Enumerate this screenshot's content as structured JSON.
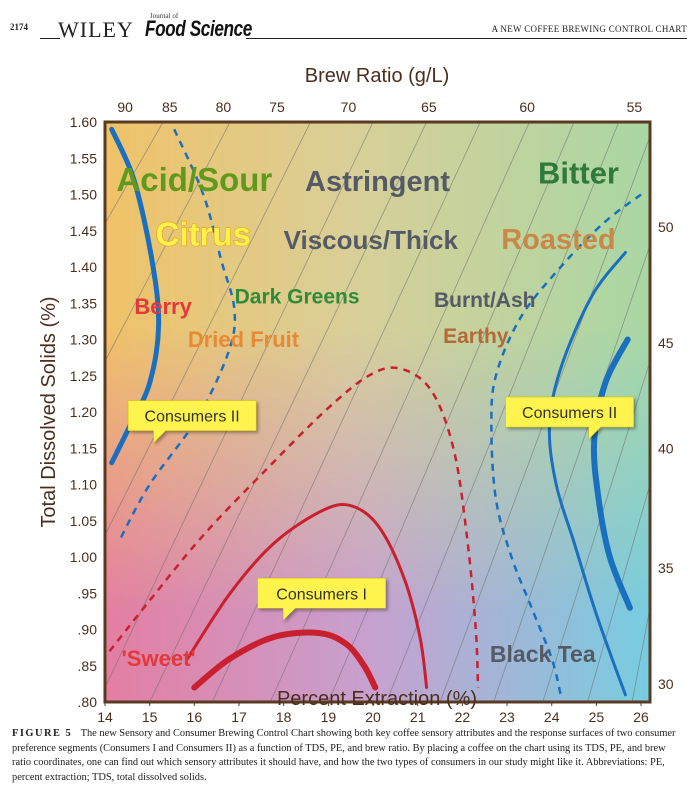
{
  "header": {
    "page_number": "2174",
    "publisher": "WILEY",
    "journal_small": "Journal of",
    "journal": "Food Science",
    "running_title": "A NEW COFFEE BREWING CONTROL CHART"
  },
  "chart_data": {
    "type": "line",
    "xlabel": "Percent Extraction (%)",
    "ylabel": "Total Dissolved Solids (%)",
    "top_axis_label": "Brew Ratio (g/L)",
    "xlim": [
      14,
      26.2
    ],
    "ylim": [
      0.8,
      1.6
    ],
    "x_ticks": [
      "14",
      "15",
      "16",
      "17",
      "18",
      "19",
      "20",
      "21",
      "22",
      "23",
      "24",
      "25",
      "26"
    ],
    "y_ticks": [
      {
        "v": 1.6,
        "t": "1.60"
      },
      {
        "v": 1.55,
        "t": "1.55"
      },
      {
        "v": 1.5,
        "t": "1.50"
      },
      {
        "v": 1.45,
        "t": "1.45"
      },
      {
        "v": 1.4,
        "t": "1.40"
      },
      {
        "v": 1.35,
        "t": "1.35"
      },
      {
        "v": 1.3,
        "t": "1.30"
      },
      {
        "v": 1.25,
        "t": "1.25"
      },
      {
        "v": 1.2,
        "t": "1.20"
      },
      {
        "v": 1.15,
        "t": "1.15"
      },
      {
        "v": 1.1,
        "t": "1.10"
      },
      {
        "v": 1.05,
        "t": "1.05"
      },
      {
        "v": 1.0,
        "t": "1.00"
      },
      {
        "v": 0.95,
        "t": ".95"
      },
      {
        "v": 0.9,
        "t": ".90"
      },
      {
        "v": 0.85,
        "t": ".85"
      },
      {
        "v": 0.8,
        "t": ".80"
      }
    ],
    "brew_ratio_top_ticks": [
      {
        "x": 14.45,
        "t": "90"
      },
      {
        "x": 15.45,
        "t": "85"
      },
      {
        "x": 16.65,
        "t": "80"
      },
      {
        "x": 17.85,
        "t": "75"
      },
      {
        "x": 19.45,
        "t": "70"
      },
      {
        "x": 21.25,
        "t": "65"
      },
      {
        "x": 23.45,
        "t": "60"
      },
      {
        "x": 25.85,
        "t": "55"
      }
    ],
    "brew_ratio_right_ticks": [
      {
        "y": 0.825,
        "t": "30"
      },
      {
        "y": 0.985,
        "t": "35"
      },
      {
        "y": 1.15,
        "t": "40"
      },
      {
        "y": 1.295,
        "t": "45"
      },
      {
        "y": 1.455,
        "t": "50"
      }
    ],
    "brew_ratio_lines": [
      [
        [
          14.0,
          1.03
        ],
        [
          18.6,
          1.6
        ]
      ],
      [
        [
          14.0,
          0.82
        ],
        [
          20.0,
          1.6
        ]
      ],
      [
        [
          15.0,
          0.8
        ],
        [
          21.2,
          1.6
        ]
      ],
      [
        [
          16.4,
          0.8
        ],
        [
          22.4,
          1.6
        ]
      ],
      [
        [
          17.7,
          0.8
        ],
        [
          23.5,
          1.6
        ]
      ],
      [
        [
          19.0,
          0.8
        ],
        [
          24.5,
          1.6
        ]
      ],
      [
        [
          20.3,
          0.8
        ],
        [
          25.5,
          1.6
        ]
      ],
      [
        [
          21.5,
          0.8
        ],
        [
          26.2,
          1.58
        ]
      ],
      [
        [
          22.7,
          0.8
        ],
        [
          26.2,
          1.43
        ]
      ],
      [
        [
          23.8,
          0.8
        ],
        [
          26.2,
          1.27
        ]
      ],
      [
        [
          24.8,
          0.8
        ],
        [
          26.2,
          1.1
        ]
      ],
      [
        [
          25.8,
          0.8
        ],
        [
          26.2,
          0.93
        ]
      ],
      [
        [
          14.0,
          1.27
        ],
        [
          16.8,
          1.6
        ]
      ],
      [
        [
          14.0,
          1.46
        ],
        [
          15.3,
          1.6
        ]
      ]
    ],
    "curves": [
      {
        "color": "#1a6fbf",
        "width": 5,
        "dash": "",
        "points": [
          [
            14.15,
            1.59
          ],
          [
            14.65,
            1.52
          ],
          [
            15.05,
            1.41
          ],
          [
            15.2,
            1.32
          ],
          [
            15.0,
            1.24
          ],
          [
            14.55,
            1.18
          ],
          [
            14.15,
            1.13
          ]
        ]
      },
      {
        "color": "#1a6fbf",
        "width": 2.5,
        "dash": "7 6",
        "points": [
          [
            15.55,
            1.59
          ],
          [
            16.2,
            1.5
          ],
          [
            16.6,
            1.41
          ],
          [
            16.9,
            1.34
          ],
          [
            16.75,
            1.28
          ],
          [
            16.05,
            1.19
          ],
          [
            15.0,
            1.1
          ],
          [
            14.3,
            1.02
          ]
        ]
      },
      {
        "color": "#1a6fbf",
        "width": 3,
        "dash": "",
        "points": [
          [
            25.65,
            1.42
          ],
          [
            24.9,
            1.36
          ],
          [
            24.2,
            1.26
          ],
          [
            23.95,
            1.18
          ],
          [
            24.1,
            1.1
          ],
          [
            24.5,
            1.02
          ],
          [
            24.95,
            0.93
          ],
          [
            25.35,
            0.86
          ],
          [
            25.65,
            0.81
          ]
        ]
      },
      {
        "color": "#1a6fbf",
        "width": 6,
        "dash": "",
        "points": [
          [
            25.7,
            1.3
          ],
          [
            25.2,
            1.24
          ],
          [
            24.95,
            1.16
          ],
          [
            25.05,
            1.08
          ],
          [
            25.3,
            1.0
          ],
          [
            25.75,
            0.93
          ]
        ]
      },
      {
        "color": "#1a6fbf",
        "width": 2.5,
        "dash": "7 6",
        "points": [
          [
            26.0,
            1.5
          ],
          [
            25.15,
            1.46
          ],
          [
            24.2,
            1.4
          ],
          [
            23.3,
            1.33
          ],
          [
            22.75,
            1.25
          ],
          [
            22.65,
            1.18
          ],
          [
            22.75,
            1.08
          ],
          [
            23.1,
            1.0
          ],
          [
            23.55,
            0.93
          ],
          [
            24.0,
            0.86
          ],
          [
            24.2,
            0.81
          ]
        ]
      },
      {
        "color": "#c9202f",
        "width": 3,
        "dash": "",
        "points": [
          [
            15.85,
            0.86
          ],
          [
            16.8,
            0.95
          ],
          [
            17.8,
            1.02
          ],
          [
            18.9,
            1.065
          ],
          [
            19.55,
            1.07
          ],
          [
            20.15,
            1.04
          ],
          [
            20.7,
            0.97
          ],
          [
            21.05,
            0.89
          ],
          [
            21.2,
            0.82
          ]
        ]
      },
      {
        "color": "#c9202f",
        "width": 6,
        "dash": "",
        "points": [
          [
            16.0,
            0.82
          ],
          [
            16.8,
            0.86
          ],
          [
            17.8,
            0.89
          ],
          [
            18.8,
            0.895
          ],
          [
            19.4,
            0.88
          ],
          [
            19.8,
            0.85
          ],
          [
            20.05,
            0.82
          ]
        ]
      },
      {
        "color": "#c9202f",
        "width": 2.5,
        "dash": "7 6",
        "points": [
          [
            14.1,
            0.87
          ],
          [
            15.0,
            0.94
          ],
          [
            16.2,
            1.03
          ],
          [
            17.6,
            1.12
          ],
          [
            18.9,
            1.2
          ],
          [
            19.9,
            1.25
          ],
          [
            20.6,
            1.26
          ],
          [
            21.3,
            1.23
          ],
          [
            21.8,
            1.15
          ],
          [
            22.1,
            1.03
          ],
          [
            22.3,
            0.9
          ],
          [
            22.35,
            0.82
          ]
        ]
      }
    ],
    "labels": [
      {
        "text": "Acid/Sour",
        "x": 16.0,
        "y": 1.505,
        "color": "#5f9a1f",
        "size": 33
      },
      {
        "text": "Astringent",
        "x": 20.1,
        "y": 1.505,
        "color": "#555a66",
        "size": 29
      },
      {
        "text": "Bitter",
        "x": 24.6,
        "y": 1.515,
        "color": "#2e7a3a",
        "size": 31
      },
      {
        "text": "Citrus",
        "x": 16.2,
        "y": 1.43,
        "color": "#fff24a",
        "size": 33,
        "stroke": "#e9a21c"
      },
      {
        "text": "Viscous/Thick",
        "x": 19.95,
        "y": 1.425,
        "color": "#555a66",
        "size": 26
      },
      {
        "text": "Roasted",
        "x": 24.15,
        "y": 1.425,
        "color": "#c98748",
        "size": 29
      },
      {
        "text": "Dark Greens",
        "x": 18.3,
        "y": 1.35,
        "color": "#2e8c3a",
        "size": 21
      },
      {
        "text": "Burnt/Ash",
        "x": 22.5,
        "y": 1.345,
        "color": "#555a66",
        "size": 21
      },
      {
        "text": "Berry",
        "x": 15.3,
        "y": 1.335,
        "color": "#e23a3a",
        "size": 22
      },
      {
        "text": "Dried Fruit",
        "x": 17.1,
        "y": 1.29,
        "color": "#e88a34",
        "size": 22
      },
      {
        "text": "Earthy",
        "x": 22.3,
        "y": 1.295,
        "color": "#b36a3a",
        "size": 21
      },
      {
        "text": "'Sweet'",
        "x": 15.2,
        "y": 0.85,
        "color": "#e23a3a",
        "size": 22
      },
      {
        "text": "Black Tea",
        "x": 23.8,
        "y": 0.855,
        "color": "#555a66",
        "size": 23
      }
    ],
    "callouts": [
      {
        "text": "Consumers II",
        "x": 15.95,
        "y": 1.195,
        "pointer": "left"
      },
      {
        "text": "Consumers II",
        "x": 24.4,
        "y": 1.2,
        "pointer": "right"
      },
      {
        "text": "Consumers I",
        "x": 18.85,
        "y": 0.95,
        "pointer": "left"
      }
    ]
  },
  "caption": {
    "figure_label": "FIGURE 5",
    "text": "The new Sensory and Consumer Brewing Control Chart showing both key coffee sensory attributes and the response surfaces of two consumer preference segments (Consumers I and Consumers II) as a function of TDS, PE, and brew ratio. By placing a coffee on the chart using its TDS, PE, and brew ratio coordinates, one can find out which sensory attributes it should have, and how the two types of consumers in our study might like it. Abbreviations: PE, percent extraction; TDS, total dissolved solids."
  }
}
